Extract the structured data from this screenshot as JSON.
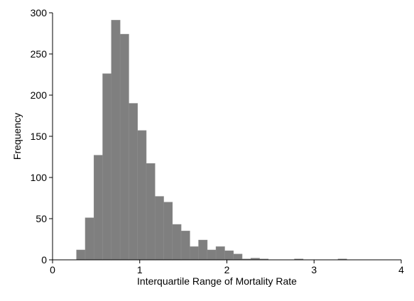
{
  "chart_data": {
    "type": "bar",
    "title": "",
    "xlabel": "Interquartile Range of Mortality Rate",
    "ylabel": "Frequency",
    "xlim": [
      0,
      4
    ],
    "ylim": [
      0,
      300
    ],
    "xticks": [
      "0",
      "1",
      "2",
      "3",
      "4"
    ],
    "yticks": [
      "0",
      "50",
      "100",
      "150",
      "200",
      "250",
      "300"
    ],
    "grid": false,
    "bar_color": "#7f7f7f",
    "bins": [
      {
        "x0": 0.275,
        "x1": 0.375,
        "count": 12
      },
      {
        "x0": 0.375,
        "x1": 0.475,
        "count": 51
      },
      {
        "x0": 0.475,
        "x1": 0.575,
        "count": 127
      },
      {
        "x0": 0.575,
        "x1": 0.675,
        "count": 226
      },
      {
        "x0": 0.675,
        "x1": 0.775,
        "count": 291
      },
      {
        "x0": 0.775,
        "x1": 0.875,
        "count": 274
      },
      {
        "x0": 0.875,
        "x1": 0.975,
        "count": 190
      },
      {
        "x0": 0.975,
        "x1": 1.075,
        "count": 157
      },
      {
        "x0": 1.075,
        "x1": 1.175,
        "count": 117
      },
      {
        "x0": 1.175,
        "x1": 1.275,
        "count": 77
      },
      {
        "x0": 1.275,
        "x1": 1.375,
        "count": 70
      },
      {
        "x0": 1.375,
        "x1": 1.475,
        "count": 43
      },
      {
        "x0": 1.475,
        "x1": 1.575,
        "count": 35
      },
      {
        "x0": 1.575,
        "x1": 1.675,
        "count": 16
      },
      {
        "x0": 1.675,
        "x1": 1.775,
        "count": 24
      },
      {
        "x0": 1.775,
        "x1": 1.875,
        "count": 12
      },
      {
        "x0": 1.875,
        "x1": 1.975,
        "count": 16
      },
      {
        "x0": 1.975,
        "x1": 2.075,
        "count": 11
      },
      {
        "x0": 2.075,
        "x1": 2.175,
        "count": 7
      },
      {
        "x0": 2.175,
        "x1": 2.275,
        "count": 1
      },
      {
        "x0": 2.275,
        "x1": 2.375,
        "count": 2
      },
      {
        "x0": 2.375,
        "x1": 2.475,
        "count": 1
      },
      {
        "x0": 2.775,
        "x1": 2.875,
        "count": 1
      },
      {
        "x0": 3.275,
        "x1": 3.375,
        "count": 1
      }
    ]
  }
}
